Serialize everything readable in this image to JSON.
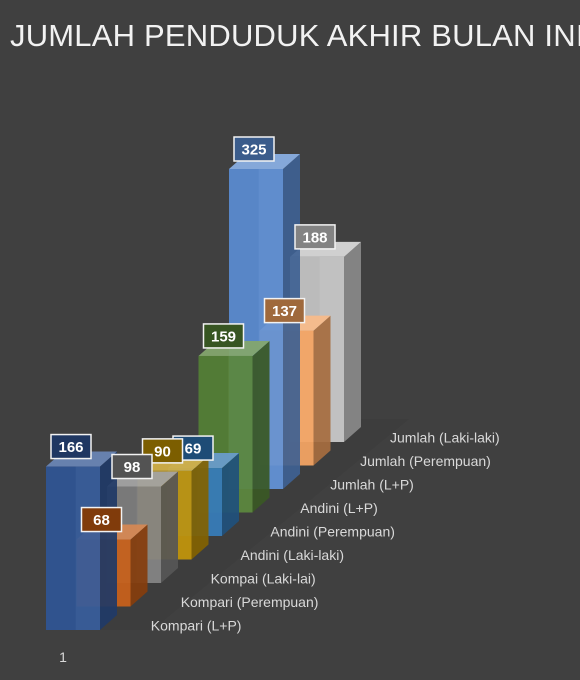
{
  "title": "JUMLAH PENDUDUK AKHIR BULAN INI",
  "chart_data": {
    "type": "bar",
    "variant": "3d-column",
    "title": "JUMLAH PENDUDUK AKHIR BULAN INI",
    "categories": [
      "1"
    ],
    "series": [
      {
        "name": "Kompari (L+P)",
        "values": [
          166
        ],
        "color": "#2f5597"
      },
      {
        "name": "Kompari (Perempuan)",
        "values": [
          68
        ],
        "color": "#c55a11"
      },
      {
        "name": "Kompai (Laki-lai)",
        "values": [
          98
        ],
        "color": "#7f7f7f"
      },
      {
        "name": "Andini (Laki-laki)",
        "values": [
          90
        ],
        "color": "#bf9000"
      },
      {
        "name": "Andini (Perempuan)",
        "values": [
          69
        ],
        "color": "#2e75b6"
      },
      {
        "name": "Andini (L+P)",
        "values": [
          159
        ],
        "color": "#548235"
      },
      {
        "name": "Jumlah (L+P)",
        "values": [
          325
        ],
        "color": "#5b8ed6"
      },
      {
        "name": "Jumlah (Perempuan)",
        "values": [
          137
        ],
        "color": "#f4a15d"
      },
      {
        "name": "Jumlah (Laki-laki)",
        "values": [
          188
        ],
        "color": "#c9c9c9"
      }
    ],
    "data_labels": true,
    "grid": false,
    "legend": "none"
  }
}
